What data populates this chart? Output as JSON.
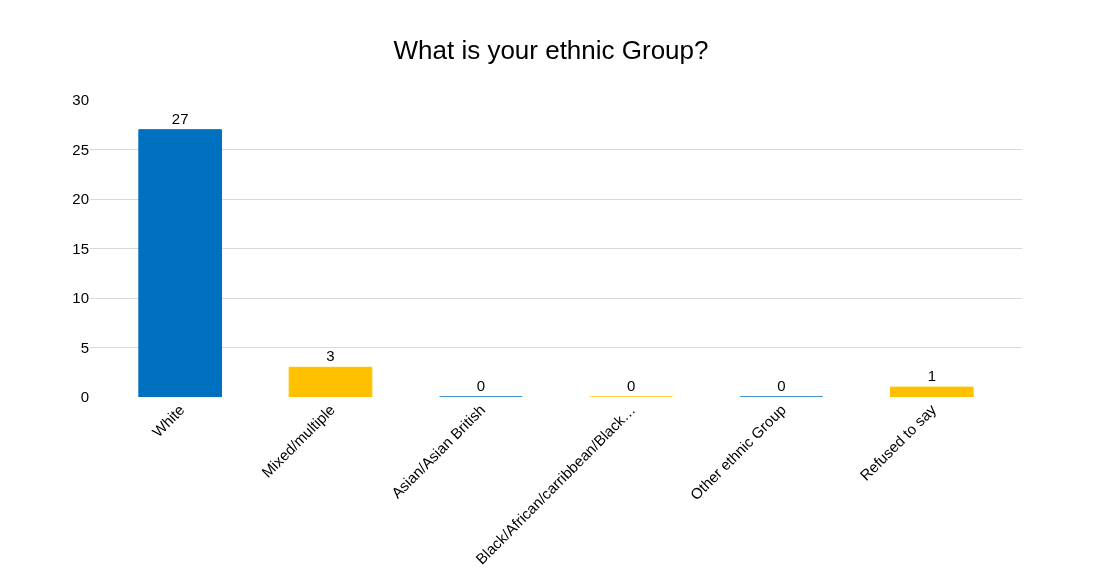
{
  "chart_data": {
    "type": "bar",
    "title": "What is your ethnic Group?",
    "categories": [
      "White",
      "Mixed/multiple",
      "Asian/Asian British",
      "Black/African/carribbean/Black…",
      "Other ethnic Group",
      "Refused to say"
    ],
    "values": [
      27,
      3,
      0,
      0,
      0,
      1
    ],
    "colors": [
      "#0070c0",
      "#ffc000",
      "#0070c0",
      "#ffc000",
      "#0070c0",
      "#ffc000"
    ],
    "ylim": [
      0,
      30
    ],
    "yticks": [
      0,
      5,
      10,
      15,
      20,
      25,
      30
    ],
    "grid": "y",
    "data_labels": true
  }
}
